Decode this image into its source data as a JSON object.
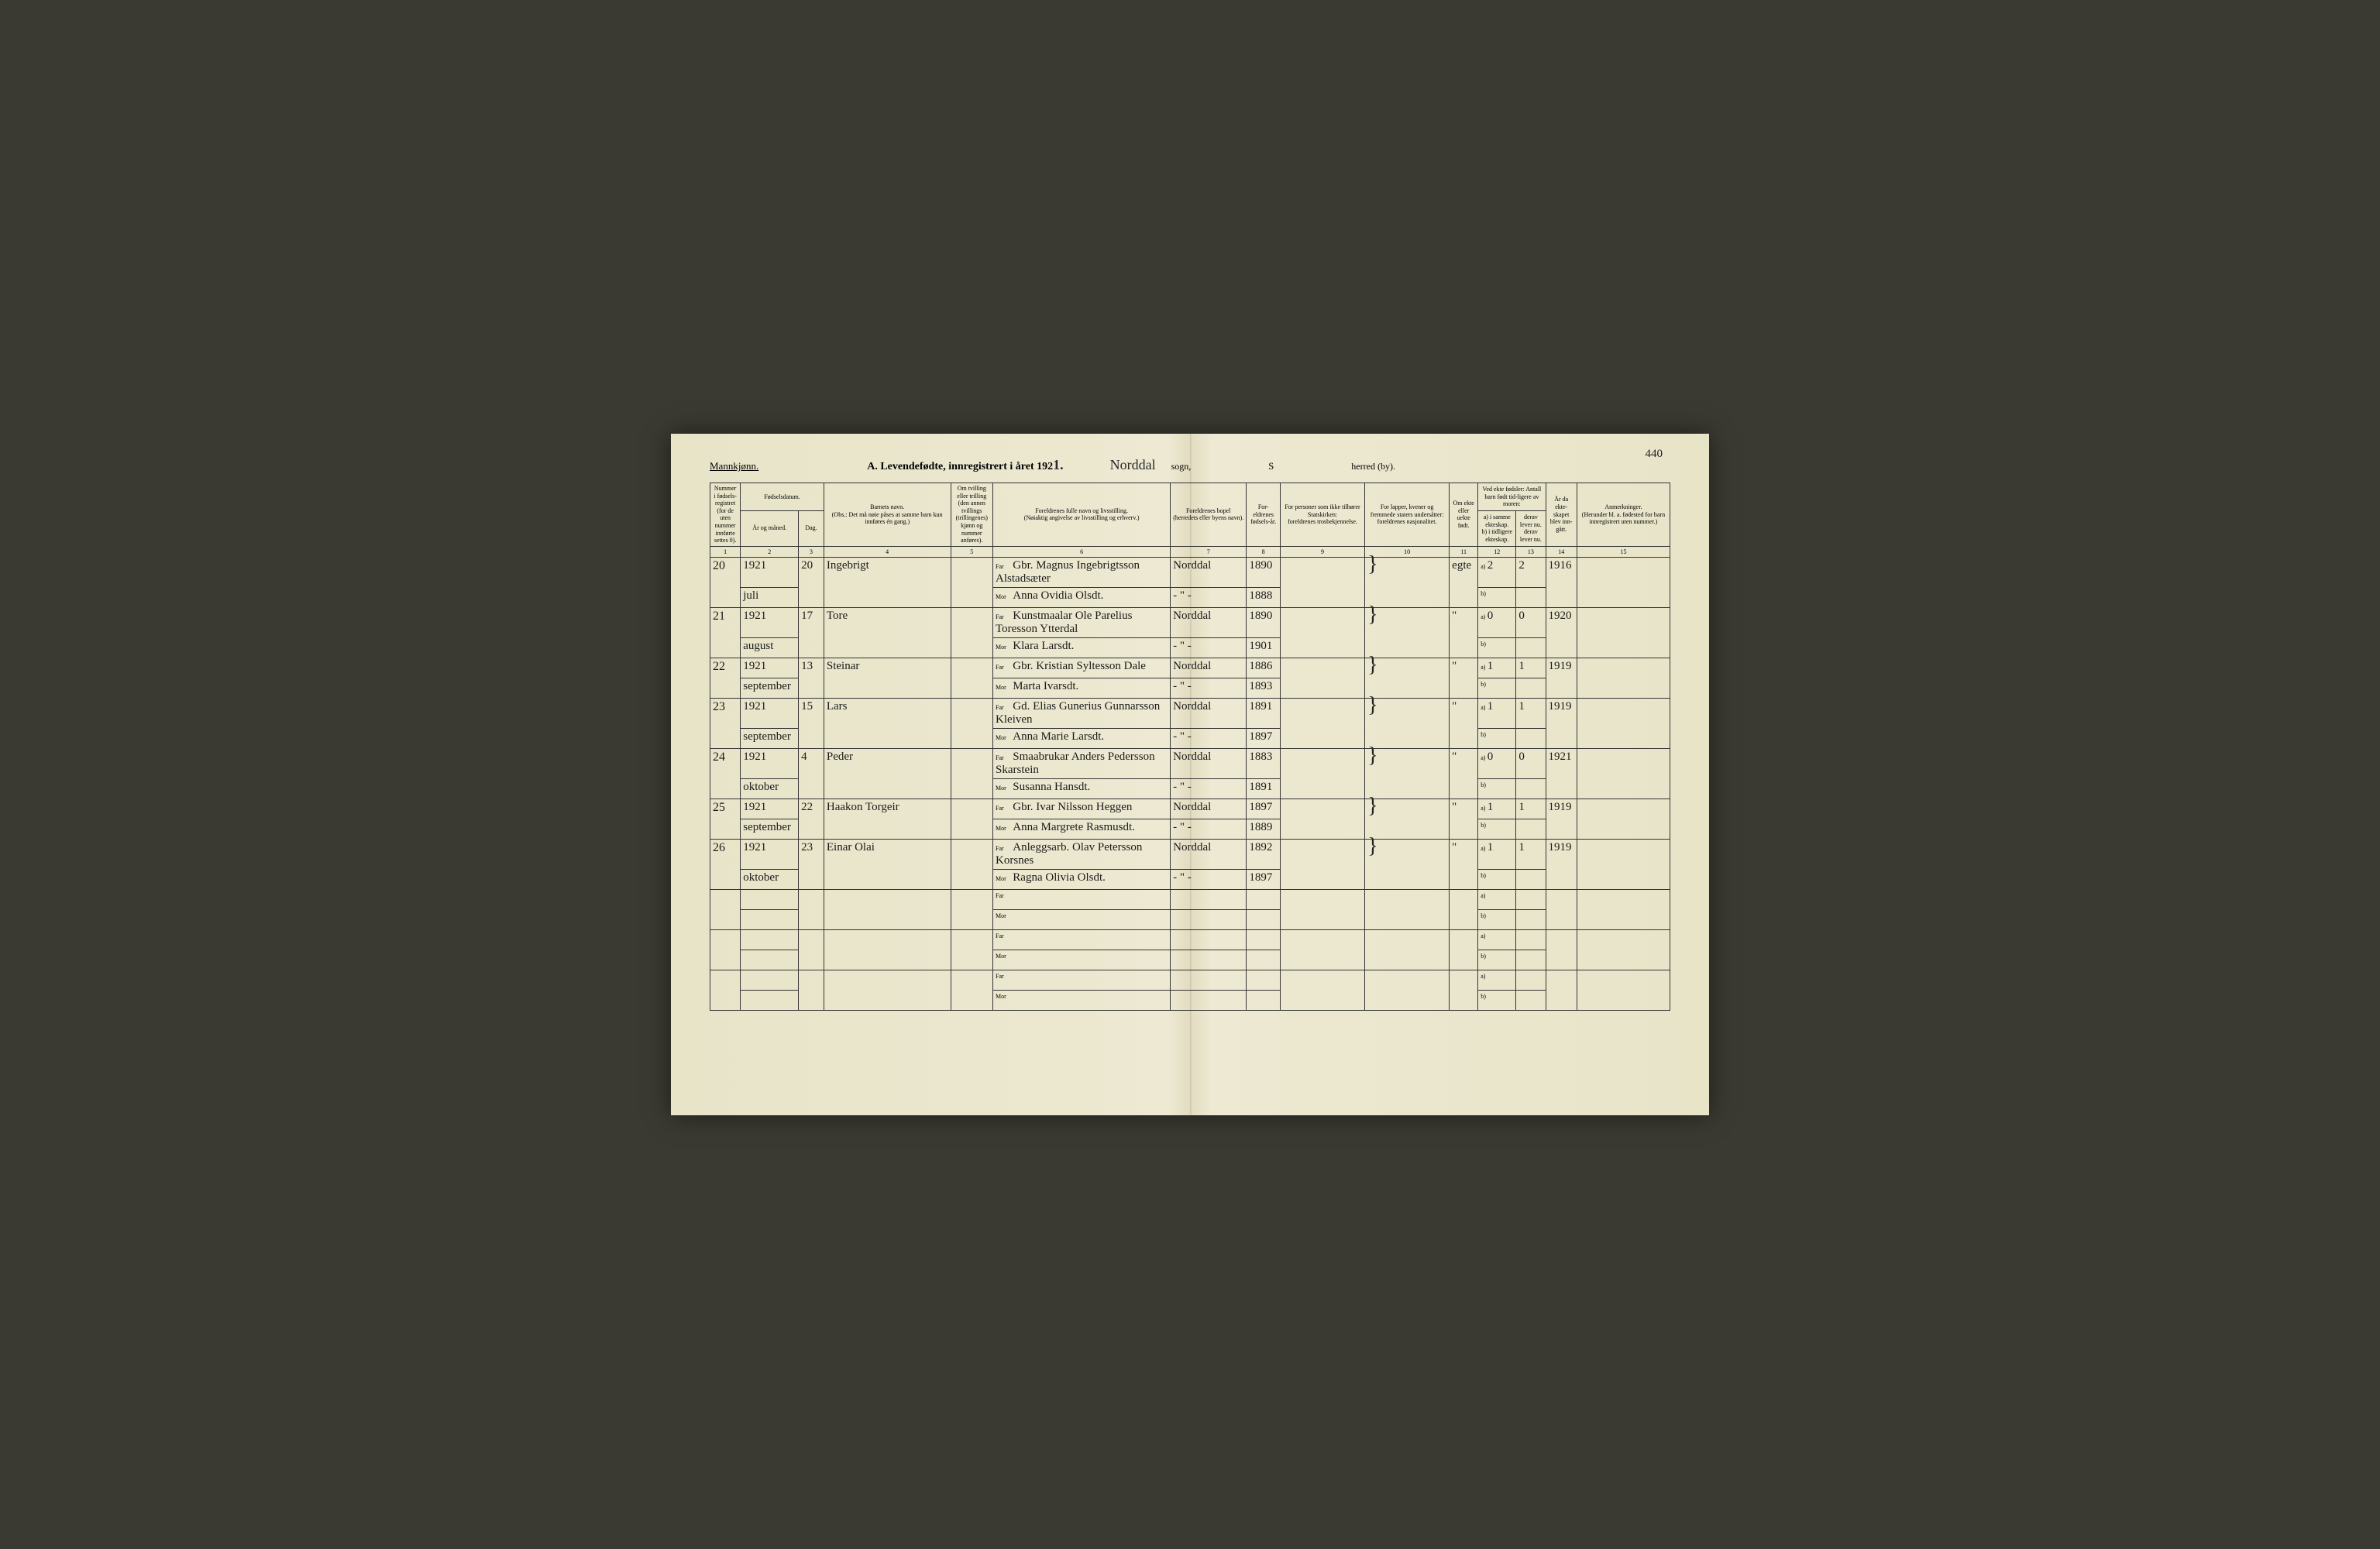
{
  "header": {
    "gender": "Mannkjønn.",
    "title_a": "A.",
    "title_text": "Levendefødte, innregistrert i året 192",
    "year_suffix": "1.",
    "sogn_value": "Norddal",
    "sogn_label": "sogn,",
    "herred_value": "s",
    "herred_label": "herred (by).",
    "page_number": "440"
  },
  "columns": {
    "c1": "Nummer i fødsels-registret (for de uten nummer innførte settes 0).",
    "c2_top": "Fødselsdatum.",
    "c2a": "År og måned.",
    "c2b": "Dag.",
    "c4_top": "Barnets navn.",
    "c4_sub": "(Obs.: Det må nøie påses at samme barn kun innføres én gang.)",
    "c5": "Om tvilling eller trilling (den annen tvillings (trillingenes) kjønn og nummer anføres).",
    "c6_top": "Foreldrenes fulle navn og livsstilling.",
    "c6_sub": "(Nøiaktig angivelse av livsstilling og erhverv.)",
    "c7_top": "Foreldrenes bopel",
    "c7_sub": "(herredets eller byens navn).",
    "c8": "For-eldrenes fødsels-år.",
    "c9_top": "For personer som ikke tilhører Statskirken:",
    "c9_sub": "foreldrenes trosbekjennelse.",
    "c10_top": "For lapper, kvener og fremmede staters undersåtter:",
    "c10_sub": "foreldrenes nasjonalitet.",
    "c11": "Om ekte eller uekte født.",
    "c12_top": "Ved ekte fødsler: Antall barn født tid-ligere av moren:",
    "c12a": "a) i samme ekteskap.",
    "c12b": "b) i tidligere ekteskap.",
    "c13a": "derav lever nu.",
    "c13b": "derav lever nu.",
    "c14": "År da ekte-skapet blev inn-gått.",
    "c15_top": "Anmerkninger.",
    "c15_sub": "(Herunder bl. a. fødested for barn innregistrert uten nummer.)",
    "far": "Far",
    "mor": "Mor",
    "label_a": "a)",
    "label_b": "b)"
  },
  "colnums": [
    "1",
    "2",
    "3",
    "4",
    "5",
    "6",
    "7",
    "8",
    "9",
    "10",
    "11",
    "12",
    "13",
    "14",
    "15"
  ],
  "rows": [
    {
      "num": "20",
      "year": "1921",
      "month": "juli",
      "day": "20",
      "name": "Ingebrigt",
      "far": "Gbr. Magnus Ingebrigtsson Alstadsæter",
      "mor": "Anna Ovidia Olsdt.",
      "bopel_f": "Norddal",
      "bopel_m": "- \" -",
      "fy": "1890",
      "my": "1888",
      "ekte": "egte",
      "a": "2",
      "a2": "2",
      "aar": "1916"
    },
    {
      "num": "21",
      "year": "1921",
      "month": "august",
      "day": "17",
      "name": "Tore",
      "far": "Kunstmaalar Ole Parelius Toresson Ytterdal",
      "mor": "Klara Larsdt.",
      "bopel_f": "Norddal",
      "bopel_m": "- \" -",
      "fy": "1890",
      "my": "1901",
      "ekte": "\"",
      "a": "0",
      "a2": "0",
      "aar": "1920"
    },
    {
      "num": "22",
      "year": "1921",
      "month": "september",
      "day": "13",
      "name": "Steinar",
      "far": "Gbr. Kristian Syltesson Dale",
      "mor": "Marta Ivarsdt.",
      "bopel_f": "Norddal",
      "bopel_m": "- \" -",
      "fy": "1886",
      "my": "1893",
      "ekte": "\"",
      "a": "1",
      "a2": "1",
      "aar": "1919"
    },
    {
      "num": "23",
      "year": "1921",
      "month": "september",
      "day": "15",
      "name": "Lars",
      "far": "Gd. Elias Gunerius Gunnarsson Kleiven",
      "mor": "Anna Marie Larsdt.",
      "bopel_f": "Norddal",
      "bopel_m": "- \" -",
      "fy": "1891",
      "my": "1897",
      "ekte": "\"",
      "a": "1",
      "a2": "1",
      "aar": "1919"
    },
    {
      "num": "24",
      "year": "1921",
      "month": "oktober",
      "day": "4",
      "name": "Peder",
      "far": "Smaabrukar Anders Pedersson Skarstein",
      "mor": "Susanna Hansdt.",
      "bopel_f": "Norddal",
      "bopel_m": "- \" -",
      "fy": "1883",
      "my": "1891",
      "ekte": "\"",
      "a": "0",
      "a2": "0",
      "aar": "1921"
    },
    {
      "num": "25",
      "year": "1921",
      "month": "september",
      "day": "22",
      "name": "Haakon Torgeir",
      "far": "Gbr. Ivar Nilsson Heggen",
      "mor": "Anna Margrete Rasmusdt.",
      "bopel_f": "Norddal",
      "bopel_m": "- \" -",
      "fy": "1897",
      "my": "1889",
      "ekte": "\"",
      "a": "1",
      "a2": "1",
      "aar": "1919"
    },
    {
      "num": "26",
      "year": "1921",
      "month": "oktober",
      "day": "23",
      "name": "Einar Olai",
      "far": "Anleggsarb. Olav Petersson Korsnes",
      "mor": "Ragna Olivia Olsdt.",
      "bopel_f": "Norddal",
      "bopel_m": "- \" -",
      "fy": "1892",
      "my": "1897",
      "ekte": "\"",
      "a": "1",
      "a2": "1",
      "aar": "1919"
    }
  ],
  "empty_rows": 3
}
